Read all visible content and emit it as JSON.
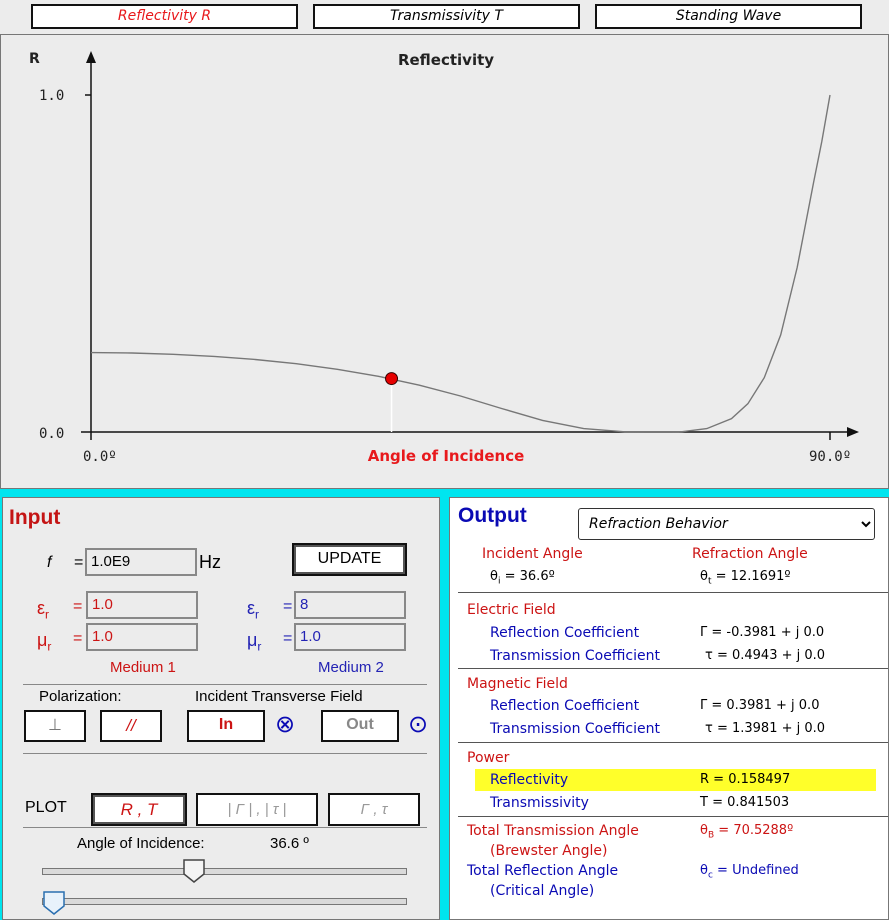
{
  "tabs": [
    {
      "label": "Reflectivity R",
      "active": true
    },
    {
      "label": "Transmissivity T",
      "active": false
    },
    {
      "label": "Standing Wave",
      "active": false
    }
  ],
  "plot": {
    "title": "Reflectivity",
    "ylabel": "R",
    "xlabel": "Angle of Incidence",
    "ytick_top": "1.0",
    "ytick_bottom": "0.0",
    "xtick_left": "0.0º",
    "xtick_right": "90.0º",
    "marker_color": "#e60000"
  },
  "chart_data": {
    "type": "line",
    "title": "Reflectivity",
    "xlabel": "Angle of Incidence",
    "ylabel": "R",
    "xlim": [
      0,
      90
    ],
    "ylim": [
      0,
      1
    ],
    "series": [
      {
        "x": [
          0,
          5,
          10,
          15,
          20,
          25,
          30,
          35,
          40,
          45,
          50,
          55,
          60,
          65,
          68,
          70,
          70.5,
          72,
          75,
          78,
          80,
          82,
          84,
          86,
          88,
          89,
          90
        ],
        "y": [
          0.2355,
          0.2343,
          0.2306,
          0.2243,
          0.2151,
          0.2026,
          0.1862,
          0.1652,
          0.1388,
          0.1067,
          0.0696,
          0.0345,
          0.0101,
          0.0007,
          0.0,
          0.0001,
          0.0,
          0.0009,
          0.01,
          0.0394,
          0.0839,
          0.1613,
          0.288,
          0.4883,
          0.7406,
          0.8621,
          1.0
        ]
      }
    ],
    "marker": {
      "x": 36.6,
      "y": 0.158497
    }
  },
  "input": {
    "title": "Input",
    "freq_symbol": "f",
    "freq_value": "1.0E9",
    "freq_unit": "Hz",
    "update_label": "UPDATE",
    "eps_symbol": "εr",
    "mu_symbol": "μr",
    "medium1": {
      "eps": "1.0",
      "mu": "1.0",
      "label": "Medium 1"
    },
    "medium2": {
      "eps": "8",
      "mu": "1.0",
      "label": "Medium 2"
    },
    "polarization_label": "Polarization:",
    "perp_label": "⊥",
    "par_label": "//",
    "itf_label": "Incident Transverse Field",
    "in_label": "In",
    "out_label": "Out",
    "plot_label": "PLOT",
    "plot_rt": "R ,  T",
    "plot_mag": "| Γ | , | τ |",
    "plot_complex": "Γ ,  τ",
    "angle_label": "Angle of Incidence:",
    "angle_value": "36.6 º",
    "angle_slider_fraction": 0.41,
    "second_slider_fraction": 0.0
  },
  "output": {
    "title": "Output",
    "dropdown_selected": "Refraction Behavior",
    "incident_angle_label": "Incident Angle",
    "incident_angle_value": "θi = 36.6º",
    "refraction_angle_label": "Refraction Angle",
    "refraction_angle_value": "θt = 12.1691º",
    "electric_field_label": "Electric Field",
    "e_refl_label": "Reflection Coefficient",
    "e_refl_value": "Γ  = -0.3981 + j 0.0",
    "e_trans_label": "Transmission Coefficient",
    "e_trans_value": "τ = 0.4943 + j 0.0",
    "magnetic_field_label": "Magnetic Field",
    "m_refl_label": "Reflection Coefficient",
    "m_refl_value": "Γ  = 0.3981 + j 0.0",
    "m_trans_label": "Transmission Coefficient",
    "m_trans_value": "τ = 1.3981 + j 0.0",
    "power_label": "Power",
    "reflectivity_label": "Reflectivity",
    "reflectivity_value": "R  = 0.158497",
    "transmissivity_label": "Transmissivity",
    "transmissivity_value": "T  = 0.841503",
    "tta_label": "Total Transmission Angle",
    "tta_sub": "(Brewster Angle)",
    "tta_value": "θB = 70.5288º",
    "tra_label": "Total Reflection Angle",
    "tra_sub": "(Critical Angle)",
    "tra_value": "θc = Undefined",
    "highlight_color": "#ffff2a"
  }
}
